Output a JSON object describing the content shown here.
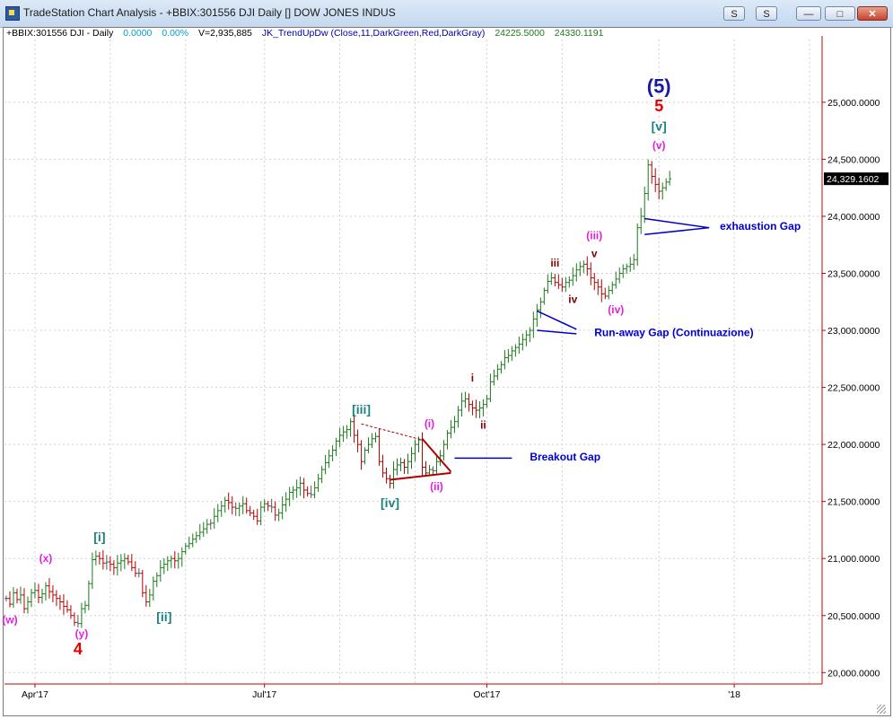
{
  "window": {
    "title": "TradeStation Chart Analysis - +BBIX:301556 DJI Daily [] DOW JONES INDUS",
    "buttons": {
      "s_label": "S",
      "s2_label": "S",
      "minimize": "—",
      "maximize": "□",
      "close": "✕"
    }
  },
  "header": {
    "symbol": "+BBIX:301556 DJI - Daily",
    "change": "0.0000",
    "change_pct": "0.00%",
    "volume": "V=2,935,885",
    "indicator": "JK_TrendUpDw (Close,11,DarkGreen,Red,DarkGray)",
    "val1": "24225.5000",
    "val2": "24330.1191"
  },
  "colors": {
    "up": "#1a7a1a",
    "down": "#b00000",
    "neutral": "#555555",
    "axis": "#c00000",
    "grid": "#d0d0d0",
    "gap_lines": "#0000cc",
    "label_teal": "#1a8080",
    "label_magenta": "#e020e0",
    "label_maroon": "#800000"
  },
  "chart_data": {
    "type": "ohlc",
    "ylim": [
      19900,
      25550
    ],
    "y_ticks": [
      20000,
      20500,
      21000,
      21500,
      22000,
      22500,
      23000,
      23500,
      24000,
      24500,
      25000
    ],
    "y_tick_labels": [
      "20,000.0000",
      "20,500.0000",
      "21,000.0000",
      "21,500.0000",
      "22,000.0000",
      "22,500.0000",
      "23,000.0000",
      "23,500.0000",
      "24,000.0000",
      "24,500.0000",
      "25,000.0000"
    ],
    "last_price": 24329.1602,
    "last_price_label": "24,329.1602",
    "x_labels": [
      {
        "label": "Apr'17",
        "bar": 8
      },
      {
        "label": "Jul'17",
        "bar": 72
      },
      {
        "label": "Oct'17",
        "bar": 134
      },
      {
        "label": "'18",
        "bar": 203
      }
    ],
    "x_gridlines": [
      8,
      29,
      50,
      72,
      93,
      114,
      134,
      155,
      182,
      203,
      224
    ],
    "bars_total": 228,
    "close_series": [
      20650,
      20600,
      20700,
      20640,
      20680,
      20560,
      20620,
      20700,
      20720,
      20660,
      20690,
      20760,
      20710,
      20680,
      20650,
      20620,
      20580,
      20550,
      20500,
      20440,
      20430,
      20560,
      20590,
      20780,
      20990,
      21020,
      21000,
      20960,
      20970,
      20950,
      20920,
      20960,
      20980,
      21000,
      20970,
      20920,
      20870,
      20870,
      20700,
      20620,
      20680,
      20800,
      20850,
      20920,
      20950,
      20980,
      21000,
      20980,
      21000,
      21060,
      21110,
      21130,
      21170,
      21200,
      21230,
      21260,
      21300,
      21310,
      21370,
      21420,
      21460,
      21510,
      21490,
      21450,
      21440,
      21460,
      21480,
      21420,
      21400,
      21370,
      21330,
      21450,
      21480,
      21460,
      21450,
      21380,
      21400,
      21470,
      21520,
      21580,
      21600,
      21620,
      21660,
      21600,
      21570,
      21560,
      21620,
      21700,
      21780,
      21840,
      21900,
      21950,
      22030,
      22080,
      22110,
      22130,
      22200,
      22080,
      22000,
      21850,
      21950,
      22000,
      22050,
      22070,
      21850,
      21750,
      21700,
      21660,
      21780,
      21820,
      21840,
      21800,
      21850,
      21920,
      22000,
      22040,
      21800,
      21750,
      21780,
      21770,
      21850,
      21900,
      22000,
      22100,
      22150,
      22200,
      22300,
      22380,
      22400,
      22350,
      22320,
      22300,
      22320,
      22350,
      22400,
      22550,
      22600,
      22660,
      22700,
      22760,
      22780,
      22820,
      22850,
      22880,
      22920,
      22960,
      23000,
      23100,
      23180,
      23250,
      23350,
      23430,
      23460,
      23420,
      23400,
      23380,
      23420,
      23440,
      23480,
      23530,
      23560,
      23580,
      23540,
      23460,
      23420,
      23380,
      23320,
      23300,
      23350,
      23400,
      23450,
      23500,
      23540,
      23560,
      23580,
      23620,
      23900,
      24000,
      24200,
      24450,
      24350,
      24280,
      24220,
      24250,
      24300,
      24329
    ],
    "breakout_gap_level": 21880,
    "runaway_gap_level": 23000,
    "exhaustion_gap_level": 23900,
    "wave_labels": [
      {
        "text": "(w)",
        "bar": 1,
        "price": 20430,
        "color": "magenta"
      },
      {
        "text": "(x)",
        "bar": 11,
        "price": 20970,
        "color": "magenta"
      },
      {
        "text": "(y)",
        "bar": 21,
        "price": 20310,
        "color": "magenta"
      },
      {
        "text": "4",
        "bar": 20,
        "price": 20160,
        "color": "red"
      },
      {
        "text": "[i]",
        "bar": 26,
        "price": 21150,
        "color": "teal"
      },
      {
        "text": "[ii]",
        "bar": 44,
        "price": 20450,
        "color": "teal"
      },
      {
        "text": "[iii]",
        "bar": 99,
        "price": 22270,
        "color": "teal"
      },
      {
        "text": "[iv]",
        "bar": 107,
        "price": 21450,
        "color": "teal"
      },
      {
        "text": "(i)",
        "bar": 118,
        "price": 22150,
        "color": "magenta"
      },
      {
        "text": "(ii)",
        "bar": 120,
        "price": 21600,
        "color": "magenta"
      },
      {
        "text": "i",
        "bar": 130,
        "price": 22550,
        "color": "maroon"
      },
      {
        "text": "ii",
        "bar": 133,
        "price": 22140,
        "color": "maroon"
      },
      {
        "text": "iii",
        "bar": 153,
        "price": 23560,
        "color": "maroon"
      },
      {
        "text": "iv",
        "bar": 158,
        "price": 23240,
        "color": "maroon"
      },
      {
        "text": "v",
        "bar": 164,
        "price": 23640,
        "color": "maroon"
      },
      {
        "text": "(iii)",
        "bar": 164,
        "price": 23800,
        "color": "magenta"
      },
      {
        "text": "(iv)",
        "bar": 170,
        "price": 23150,
        "color": "magenta"
      },
      {
        "text": "(v)",
        "bar": 182,
        "price": 24590,
        "color": "magenta"
      },
      {
        "text": "[v]",
        "bar": 182,
        "price": 24750,
        "color": "teal"
      },
      {
        "text": "5",
        "bar": 182,
        "price": 24920,
        "color": "red"
      },
      {
        "text": "(5)",
        "bar": 182,
        "price": 25080,
        "color": "navy"
      }
    ],
    "annotations": [
      {
        "text": "Breakout Gap",
        "bar": 146,
        "price": 21860
      },
      {
        "text": "Run-away Gap (Continuazione)",
        "bar": 164,
        "price": 22950
      },
      {
        "text": "exhaustion Gap",
        "bar": 199,
        "price": 23880
      }
    ]
  }
}
